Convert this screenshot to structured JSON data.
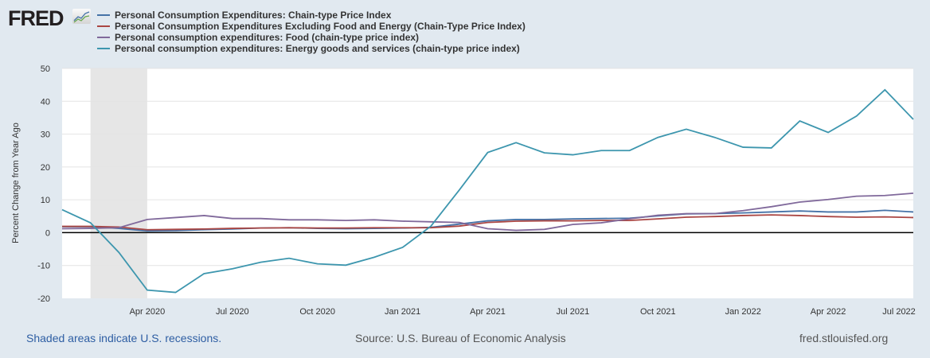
{
  "logo": "FRED",
  "footer": {
    "recession_note": "Shaded areas indicate U.S. recessions.",
    "source": "Source: U.S. Bureau of Economic Analysis",
    "site": "fred.stlouisfed.org"
  },
  "chart_data": {
    "type": "line",
    "ylabel": "Percent Change from Year Ago",
    "ylim": [
      -20,
      50
    ],
    "yticks": [
      -20,
      -10,
      0,
      10,
      20,
      30,
      40,
      50
    ],
    "x": [
      "2020-01",
      "2020-02",
      "2020-03",
      "2020-04",
      "2020-05",
      "2020-06",
      "2020-07",
      "2020-08",
      "2020-09",
      "2020-10",
      "2020-11",
      "2020-12",
      "2021-01",
      "2021-02",
      "2021-03",
      "2021-04",
      "2021-05",
      "2021-06",
      "2021-07",
      "2021-08",
      "2021-09",
      "2021-10",
      "2021-11",
      "2021-12",
      "2022-01",
      "2022-02",
      "2022-03",
      "2022-04",
      "2022-05",
      "2022-06",
      "2022-07"
    ],
    "xticks": [
      {
        "label": "Apr 2020",
        "index": 3
      },
      {
        "label": "Jul 2020",
        "index": 6
      },
      {
        "label": "Oct 2020",
        "index": 9
      },
      {
        "label": "Jan 2021",
        "index": 12
      },
      {
        "label": "Apr 2021",
        "index": 15
      },
      {
        "label": "Jul 2021",
        "index": 18
      },
      {
        "label": "Oct 2021",
        "index": 21
      },
      {
        "label": "Jan 2022",
        "index": 24
      },
      {
        "label": "Apr 2022",
        "index": 27
      },
      {
        "label": "Jul 2022",
        "index": 30
      }
    ],
    "recession": {
      "start_index": 1,
      "end_index": 3
    },
    "series": [
      {
        "name": "Personal Consumption Expenditures: Chain-type Price Index",
        "color": "#4572a7",
        "values": [
          1.8,
          1.8,
          1.3,
          0.5,
          0.6,
          0.9,
          1.1,
          1.4,
          1.5,
          1.3,
          1.2,
          1.3,
          1.4,
          1.6,
          2.6,
          3.6,
          4.0,
          4.0,
          4.2,
          4.3,
          4.4,
          5.1,
          5.7,
          5.8,
          6.0,
          6.3,
          6.6,
          6.3,
          6.3,
          6.8,
          6.3
        ]
      },
      {
        "name": "Personal Consumption Expenditures Excluding Food and Energy (Chain-Type Price Index)",
        "color": "#aa4643",
        "values": [
          1.9,
          1.9,
          1.7,
          0.9,
          1.0,
          1.1,
          1.3,
          1.4,
          1.5,
          1.4,
          1.4,
          1.5,
          1.5,
          1.5,
          2.0,
          3.1,
          3.5,
          3.6,
          3.6,
          3.7,
          3.7,
          4.2,
          4.7,
          4.9,
          5.2,
          5.4,
          5.2,
          4.9,
          4.7,
          4.8,
          4.6
        ]
      },
      {
        "name": "Personal consumption expenditures: Food (chain-type price index)",
        "color": "#80699b",
        "values": [
          1.2,
          1.3,
          1.5,
          4.0,
          4.6,
          5.2,
          4.3,
          4.3,
          3.9,
          3.9,
          3.7,
          3.9,
          3.5,
          3.3,
          3.1,
          1.2,
          0.7,
          1.0,
          2.5,
          3.0,
          4.2,
          5.3,
          5.8,
          5.8,
          6.7,
          7.9,
          9.3,
          10.1,
          11.1,
          11.3,
          12.0
        ]
      },
      {
        "name": "Personal consumption expenditures: Energy goods and services (chain-type price index)",
        "color": "#3d96ae",
        "values": [
          7.0,
          3.0,
          -6.0,
          -17.5,
          -18.2,
          -12.5,
          -11.0,
          -9.0,
          -7.8,
          -9.5,
          -9.9,
          -7.5,
          -4.5,
          2.0,
          13.0,
          24.4,
          27.4,
          24.3,
          23.7,
          25.0,
          25.0,
          29.0,
          31.5,
          29.0,
          26.0,
          25.8,
          34.0,
          30.5,
          35.5,
          43.5,
          34.5
        ]
      }
    ]
  }
}
